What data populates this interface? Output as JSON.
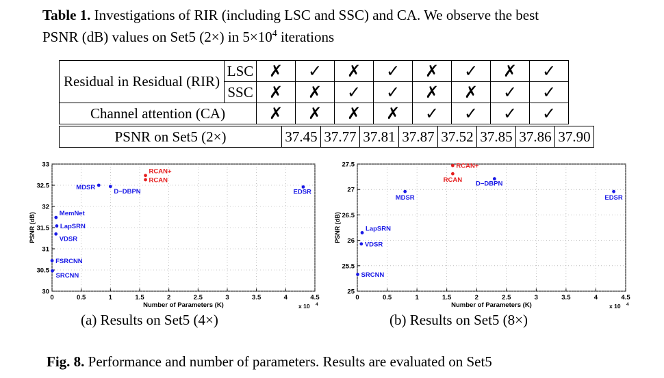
{
  "table_caption": {
    "label": "Table 1.",
    "line1": "Investigations of RIR (including LSC and SSC) and CA. We observe the best",
    "line2_pre": "PSNR (dB) values on Set5 (2×) in 5×10",
    "line2_sup": "4",
    "line2_post": " iterations"
  },
  "table": {
    "rir_label": "Residual in Residual (RIR)",
    "lsc_label": "LSC",
    "ssc_label": "SSC",
    "ca_label": "Channel attention (CA)",
    "psnr_label": "PSNR on Set5 (2×)",
    "lsc": [
      "✗",
      "✓",
      "✗",
      "✓",
      "✗",
      "✓",
      "✗",
      "✓"
    ],
    "ssc": [
      "✗",
      "✗",
      "✓",
      "✓",
      "✗",
      "✗",
      "✓",
      "✓"
    ],
    "ca": [
      "✗",
      "✗",
      "✗",
      "✗",
      "✓",
      "✓",
      "✓",
      "✓"
    ],
    "psnr": [
      "37.45",
      "37.77",
      "37.81",
      "37.87",
      "37.52",
      "37.85",
      "37.86",
      "37.90"
    ]
  },
  "chart_data": [
    {
      "type": "scatter",
      "caption": "(a) Results on Set5 (4×)",
      "xlabel": "Number of Parameters (K)",
      "ylabel": "PSNR (dB)",
      "x_multiplier": "x 10",
      "x_multiplier_exp": "4",
      "xlim": [
        0,
        4.5
      ],
      "ylim": [
        30,
        33
      ],
      "xticks": [
        "0",
        "0.5",
        "1",
        "1.5",
        "2",
        "2.5",
        "3",
        "3.5",
        "4",
        "4.5"
      ],
      "yticks": [
        "30",
        "30.5",
        "31",
        "31.5",
        "32",
        "32.5",
        "33"
      ],
      "grid": true,
      "points": [
        {
          "label": "SRCNN",
          "x": 0.006,
          "y": 30.48,
          "color": "#1a1ae6",
          "label_pos": "right-below"
        },
        {
          "label": "FSRCNN",
          "x": 0.001,
          "y": 30.72,
          "color": "#1a1ae6",
          "label_pos": "right"
        },
        {
          "label": "VDSR",
          "x": 0.067,
          "y": 31.35,
          "color": "#1a1ae6",
          "label_pos": "right-below"
        },
        {
          "label": "LapSRN",
          "x": 0.081,
          "y": 31.54,
          "color": "#1a1ae6",
          "label_pos": "right"
        },
        {
          "label": "MemNet",
          "x": 0.068,
          "y": 31.74,
          "color": "#1a1ae6",
          "label_pos": "right-above"
        },
        {
          "label": "MDSR",
          "x": 0.8,
          "y": 32.5,
          "color": "#1a1ae6",
          "label_pos": "left"
        },
        {
          "label": "D−DBPN",
          "x": 1.0,
          "y": 32.47,
          "color": "#1a1ae6",
          "label_pos": "right-below"
        },
        {
          "label": "EDSR",
          "x": 4.3,
          "y": 32.46,
          "color": "#1a1ae6",
          "label_pos": "left-below"
        },
        {
          "label": "RCAN",
          "x": 1.6,
          "y": 32.63,
          "color": "#e62020",
          "label_pos": "right"
        },
        {
          "label": "RCAN+",
          "x": 1.6,
          "y": 32.73,
          "color": "#e62020",
          "label_pos": "right-above"
        }
      ]
    },
    {
      "type": "scatter",
      "caption": "(b) Results on Set5 (8×)",
      "xlabel": "Number of Parameters (K)",
      "ylabel": "PSNR (dB)",
      "x_multiplier": "x 10",
      "x_multiplier_exp": "4",
      "xlim": [
        0,
        4.5
      ],
      "ylim": [
        25,
        27.5
      ],
      "xticks": [
        "0",
        "0.5",
        "1",
        "1.5",
        "2",
        "2.5",
        "3",
        "3.5",
        "4",
        "4.5"
      ],
      "yticks": [
        "25",
        "25.5",
        "26",
        "26.5",
        "27",
        "27.5"
      ],
      "grid": true,
      "points": [
        {
          "label": "SRCNN",
          "x": 0.006,
          "y": 25.33,
          "color": "#1a1ae6",
          "label_pos": "right"
        },
        {
          "label": "VDSR",
          "x": 0.067,
          "y": 25.93,
          "color": "#1a1ae6",
          "label_pos": "right"
        },
        {
          "label": "LapSRN",
          "x": 0.081,
          "y": 26.15,
          "color": "#1a1ae6",
          "label_pos": "right-above"
        },
        {
          "label": "MDSR",
          "x": 0.8,
          "y": 26.96,
          "color": "#1a1ae6",
          "label_pos": "below"
        },
        {
          "label": "D−DBPN",
          "x": 2.3,
          "y": 27.21,
          "color": "#1a1ae6",
          "label_pos": "left-below"
        },
        {
          "label": "EDSR",
          "x": 4.3,
          "y": 26.96,
          "color": "#1a1ae6",
          "label_pos": "below"
        },
        {
          "label": "RCAN",
          "x": 1.6,
          "y": 27.31,
          "color": "#e62020",
          "label_pos": "below"
        },
        {
          "label": "RCAN+",
          "x": 1.6,
          "y": 27.47,
          "color": "#e62020",
          "label_pos": "right"
        }
      ]
    }
  ],
  "figure_caption": {
    "label": "Fig. 8.",
    "text": "Performance and number of parameters. Results are evaluated on Set5"
  }
}
